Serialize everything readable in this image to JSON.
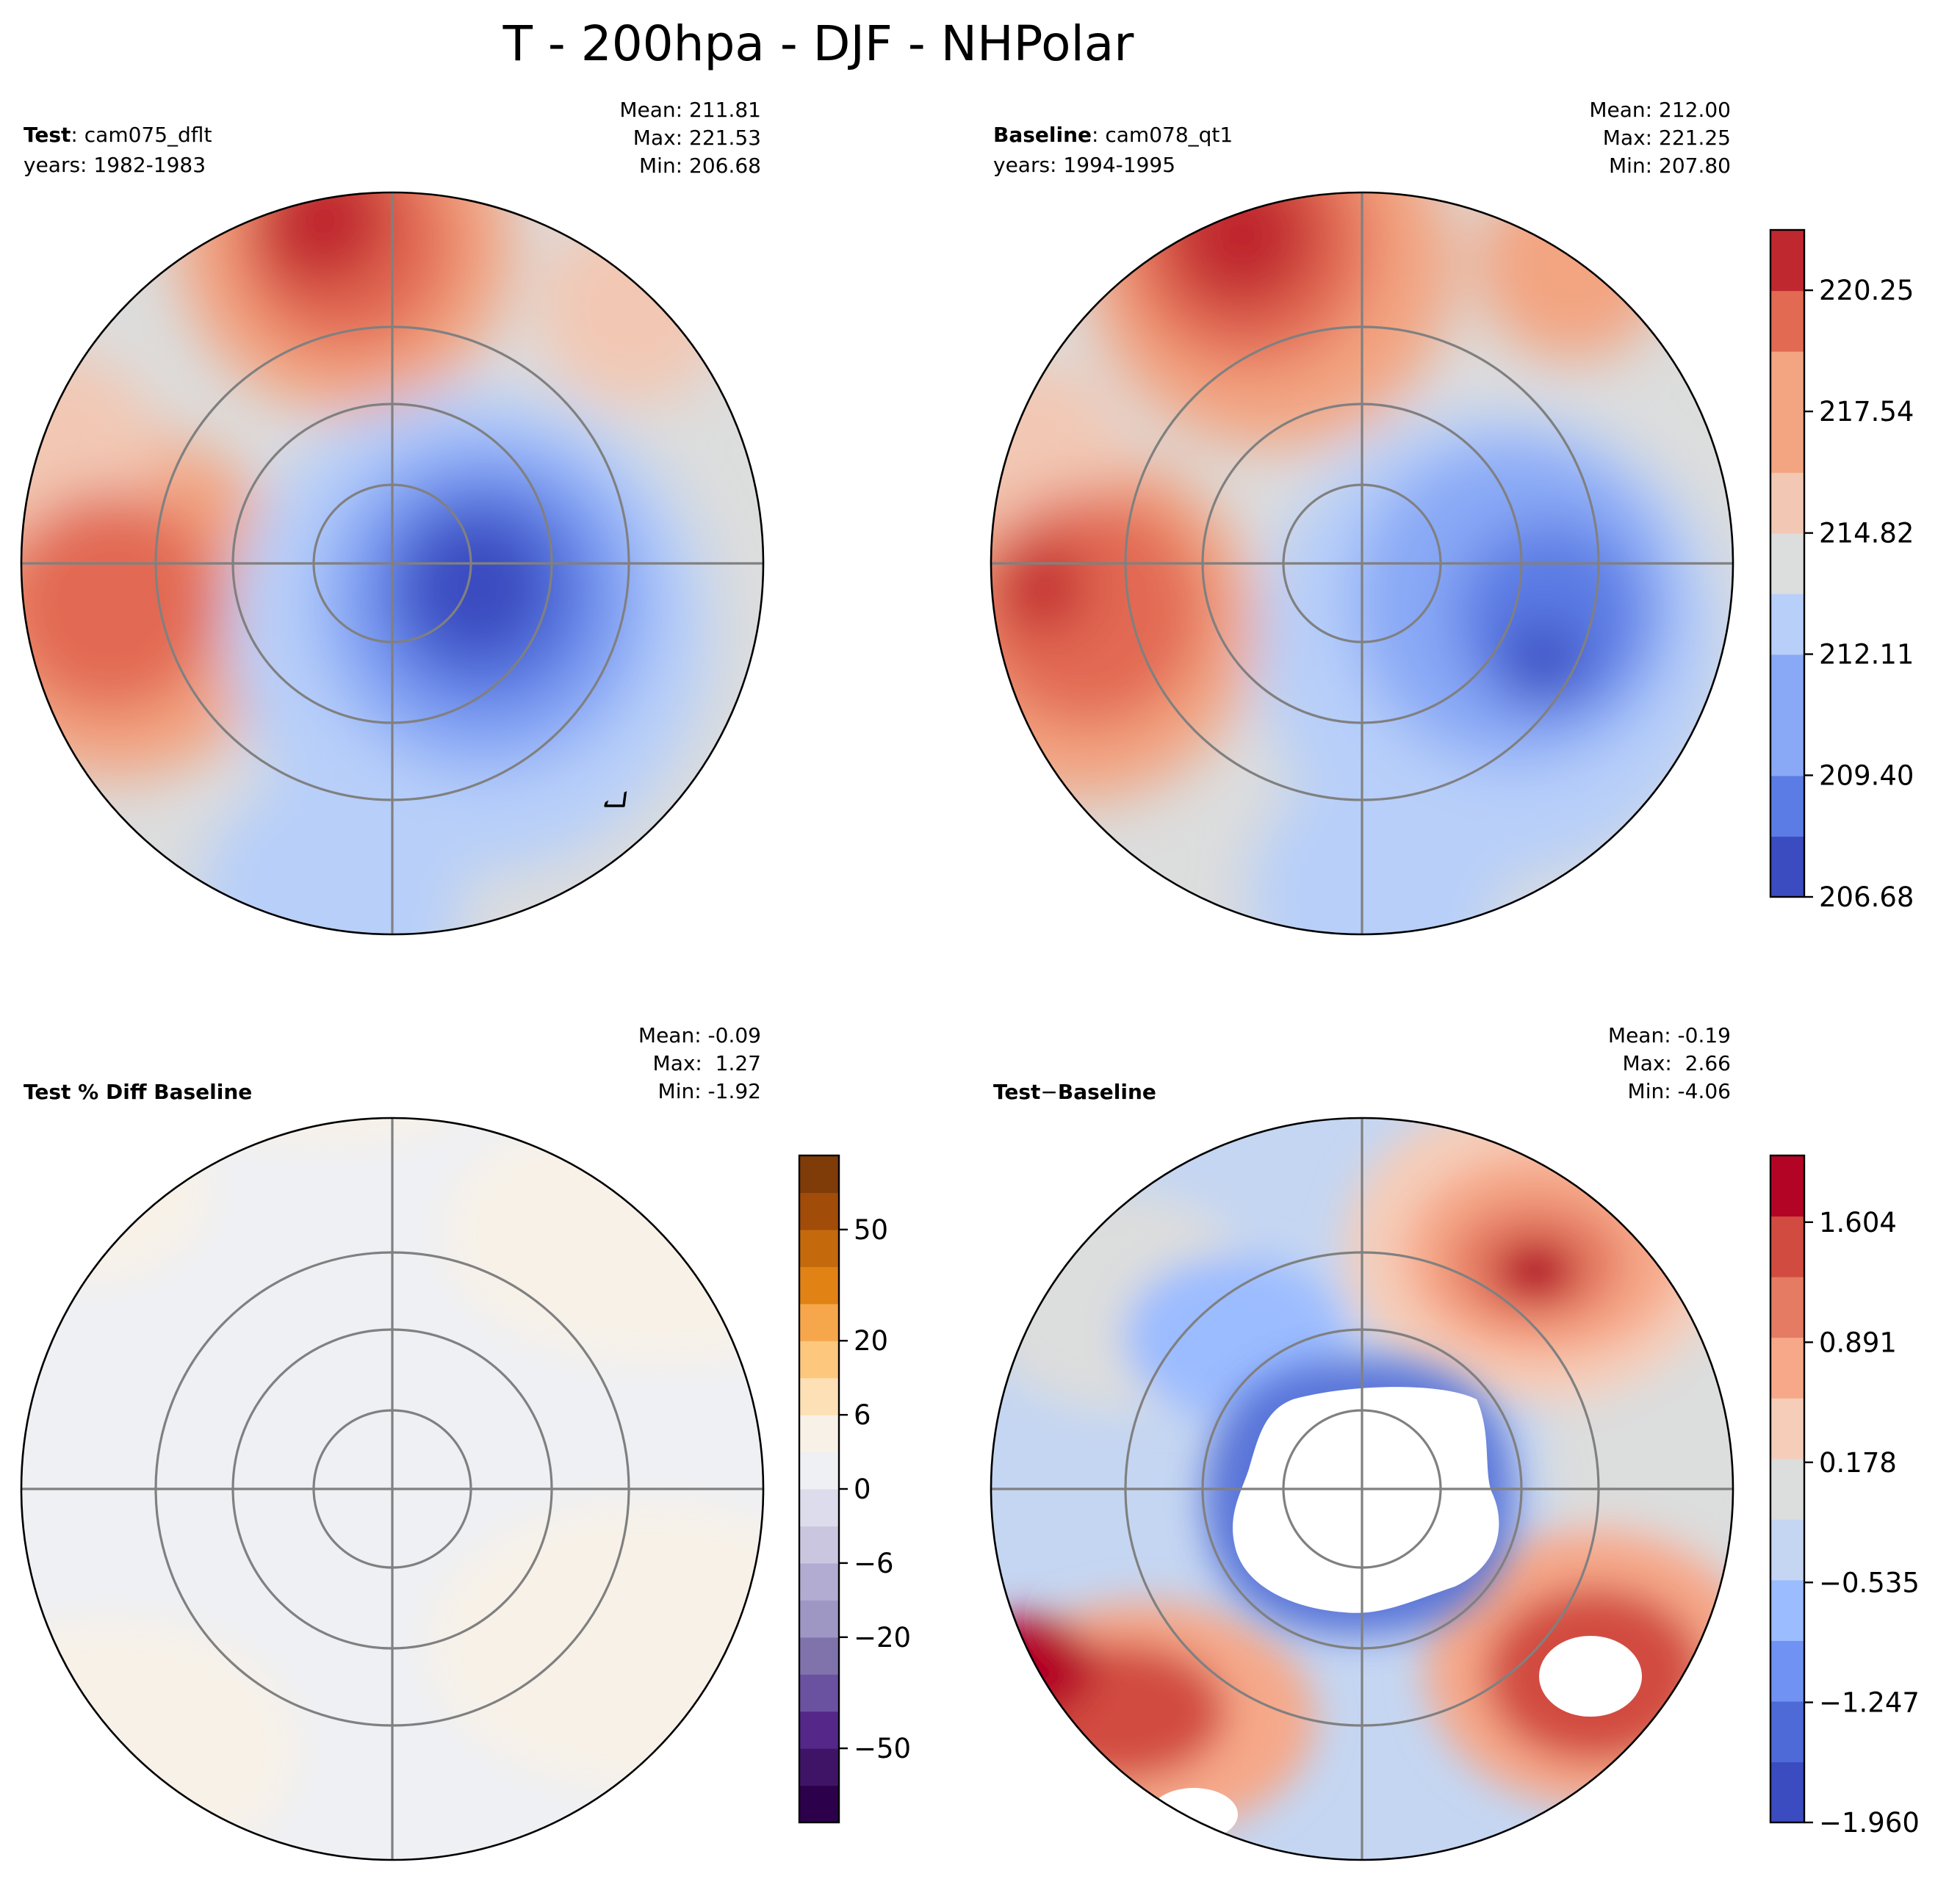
{
  "figure": {
    "title": "T - 200hpa - DJF - NHPolar"
  },
  "colors": {
    "cw": [
      "#3b4cc0",
      "#5b7ce4",
      "#89a9f6",
      "#b7cff9",
      "#dcdddd",
      "#f2c8b4",
      "#f3a481",
      "#e26952",
      "#c0282f"
    ],
    "cw_diff": [
      "#3b4cc0",
      "#4e6ad6",
      "#6f92f3",
      "#9bbcff",
      "#c5d6f2",
      "#dcdddd",
      "#f5cdb9",
      "#f6a889",
      "#e57b62",
      "#d24b40",
      "#b40426"
    ],
    "pct": [
      "#2d004b",
      "#3f1467",
      "#542788",
      "#6b52a0",
      "#8073ac",
      "#9e97c4",
      "#b2abd2",
      "#cac6e0",
      "#dcdcec",
      "#eef0f4",
      "#f7f1e8",
      "#fee0b6",
      "#fdc87e",
      "#f7a74b",
      "#e08214",
      "#c46a0d",
      "#a24c09",
      "#7f3b08"
    ],
    "grid": "#808080",
    "coast": "#000000",
    "missing": "#ffffff"
  },
  "chart_data": [
    {
      "type": "heatmap",
      "panel": "test",
      "label_bold": "Test",
      "label_text": "cam075_dflt",
      "years": "years: 1982-1983",
      "stats": [
        "Mean: 211.81",
        "Max: 221.53",
        "Min: 206.68"
      ],
      "projection": "North Polar Stereographic",
      "value_range": [
        206.68,
        221.53
      ],
      "colorbar": "shared with baseline"
    },
    {
      "type": "heatmap",
      "panel": "baseline",
      "label_bold": "Baseline",
      "label_text": "cam078_qt1",
      "years": "years: 1994-1995",
      "stats": [
        "Mean: 212.00",
        "Max: 221.25",
        "Min: 207.80"
      ],
      "projection": "North Polar Stereographic",
      "value_range": [
        207.8,
        221.25
      ],
      "colorbar": {
        "ticks": [
          "220.25",
          "217.54",
          "214.82",
          "212.11",
          "209.40",
          "206.68"
        ],
        "tick_values": [
          220.25,
          217.54,
          214.82,
          212.11,
          209.4,
          206.68
        ],
        "range": [
          206.68,
          221.6
        ],
        "levels": 11
      }
    },
    {
      "type": "heatmap",
      "panel": "pct_diff",
      "label_bold": "Test % Diff Baseline",
      "stats": [
        "Mean: -0.09",
        "Max:  1.27",
        "Min: -1.92"
      ],
      "projection": "North Polar Stereographic",
      "value_range": [
        -1.92,
        1.27
      ],
      "colorbar": {
        "ticks": [
          "50",
          "20",
          "6",
          "0",
          "−6",
          "−20",
          "−50"
        ],
        "tick_values": [
          50,
          20,
          6,
          0,
          -6,
          -20,
          -50
        ],
        "levels": 18
      }
    },
    {
      "type": "heatmap",
      "panel": "diff",
      "label_bold": "Test",
      "label_mid": "−",
      "label_tail": "Baseline",
      "stats": [
        "Mean: -0.19",
        "Max:  2.66",
        "Min: -4.06"
      ],
      "projection": "North Polar Stereographic",
      "value_range": [
        -4.06,
        2.66
      ],
      "colorbar": {
        "ticks": [
          "1.604",
          "0.891",
          "0.178",
          "−0.535",
          "−1.247",
          "−1.960"
        ],
        "tick_values": [
          1.604,
          0.891,
          0.178,
          -0.535,
          -1.247,
          -1.96
        ],
        "range": [
          -1.96,
          2.0
        ],
        "levels": 11
      }
    }
  ]
}
